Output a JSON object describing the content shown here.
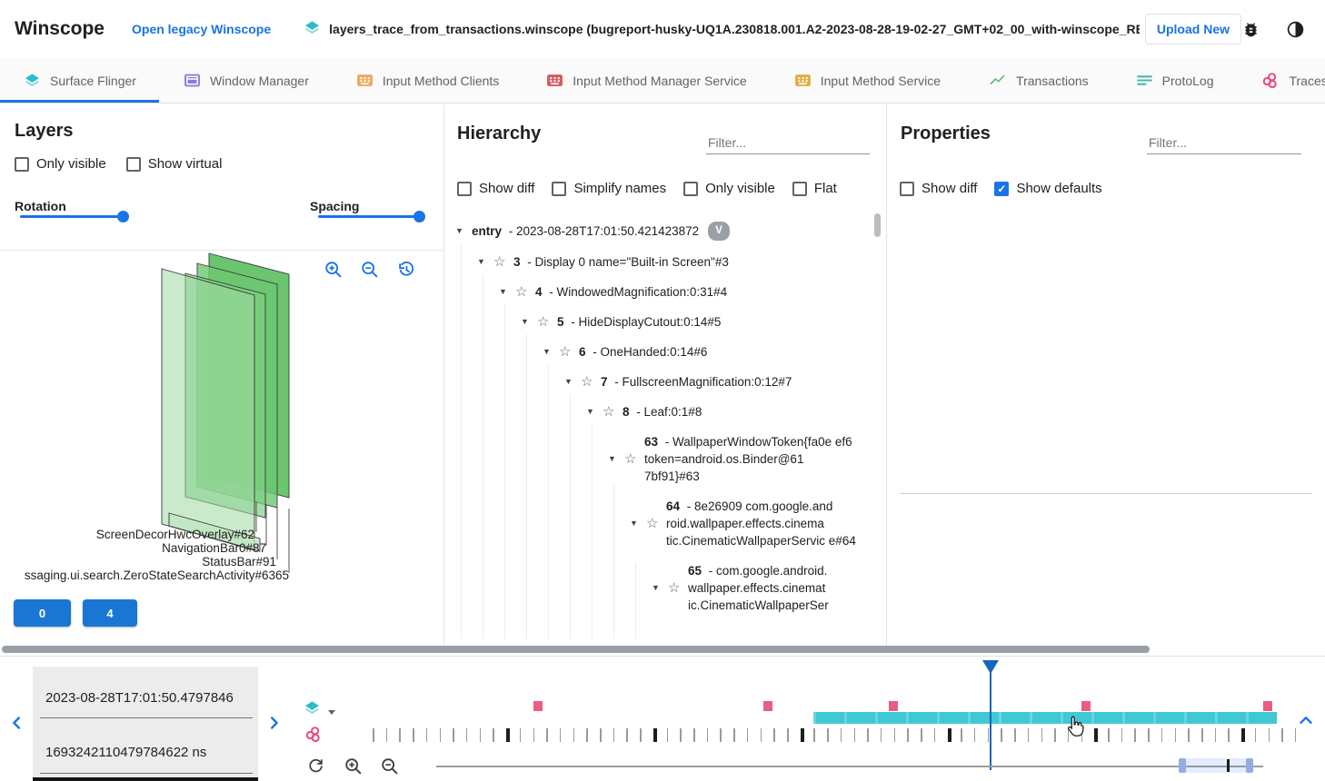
{
  "header": {
    "app_title": "Winscope",
    "legacy_link": "Open legacy Winscope",
    "file_name": "layers_trace_from_transactions.winscope (bugreport-husky-UQ1A.230818.001.A2-2023-08-28-19-02-27_GMT+02_00_with-winscope_REDACTED.zip)",
    "upload_button": "Upload New"
  },
  "tabs": [
    {
      "label": "Surface Flinger",
      "icon": "layers",
      "active": true
    },
    {
      "label": "Window Manager",
      "icon": "window",
      "active": false
    },
    {
      "label": "Input Method Clients",
      "icon": "kb-orange",
      "active": false
    },
    {
      "label": "Input Method Manager Service",
      "icon": "kb-red",
      "active": false
    },
    {
      "label": "Input Method Service",
      "icon": "kb-yellow",
      "active": false
    },
    {
      "label": "Transactions",
      "icon": "chart",
      "active": false
    },
    {
      "label": "ProtoLog",
      "icon": "list",
      "active": false
    },
    {
      "label": "Traces",
      "icon": "tags",
      "active": false
    }
  ],
  "layers_panel": {
    "title": "Layers",
    "checkboxes": [
      {
        "label": "Only visible",
        "checked": false
      },
      {
        "label": "Show virtual",
        "checked": false
      }
    ],
    "rotation_label": "Rotation",
    "spacing_label": "Spacing",
    "layer_labels": [
      "ScreenDecorHwcOverlay#62",
      "NavigationBar0#87",
      "StatusBar#91",
      "ssaging.ui.search.ZeroStateSearchActivity#6365"
    ],
    "display_buttons": [
      "0",
      "4"
    ]
  },
  "hierarchy_panel": {
    "title": "Hierarchy",
    "filter_placeholder": "Filter...",
    "checkboxes": [
      {
        "label": "Show diff",
        "checked": false
      },
      {
        "label": "Simplify names",
        "checked": false
      },
      {
        "label": "Only visible",
        "checked": false
      },
      {
        "label": "Flat",
        "checked": false
      }
    ],
    "tree": [
      {
        "level": 0,
        "id": "entry",
        "label": "- 2023-08-28T17:01:50.421423872",
        "chip": "V",
        "star": false
      },
      {
        "level": 1,
        "id": "3",
        "label": "- Display 0 name=\"Built-in Screen\"#3",
        "star": true
      },
      {
        "level": 2,
        "id": "4",
        "label": "- WindowedMagnification:0:31#4",
        "star": true
      },
      {
        "level": 3,
        "id": "5",
        "label": "- HideDisplayCutout:0:14#5",
        "star": true
      },
      {
        "level": 4,
        "id": "6",
        "label": "- OneHanded:0:14#6",
        "star": true
      },
      {
        "level": 5,
        "id": "7",
        "label": "- FullscreenMagnification:0:12#7",
        "star": true
      },
      {
        "level": 6,
        "id": "8",
        "label": "- Leaf:0:1#8",
        "star": true
      },
      {
        "level": 7,
        "id": "63",
        "label": "- WallpaperWindowToken{fa0e ef6 token=android.os.Binder@61 7bf91}#63",
        "star": true
      },
      {
        "level": 8,
        "id": "64",
        "label": "- 8e26909 com.google.and roid.wallpaper.effects.cinema tic.CinematicWallpaperServic e#64",
        "star": true
      },
      {
        "level": 9,
        "id": "65",
        "label": "- com.google.android. wallpaper.effects.cinemat ic.CinematicWallpaperSer",
        "star": true
      }
    ]
  },
  "properties_panel": {
    "title": "Properties",
    "filter_placeholder": "Filter...",
    "checkboxes": [
      {
        "label": "Show diff",
        "checked": false
      },
      {
        "label": "Show defaults",
        "checked": true
      }
    ]
  },
  "timeline": {
    "human_timestamp": "2023-08-28T17:01:50.4797846",
    "ns_timestamp": "1693242110479784622 ns",
    "transaction_marker_percents": [
      17.8,
      42.4,
      55.9,
      76.6,
      96.1
    ],
    "sf_block": {
      "start_percent": 47.3,
      "end_percent": 97.1
    },
    "playhead_percent": 66.3,
    "zoom_window": {
      "start_percent": 90.3,
      "end_percent": 98.2,
      "tick_percent": 95.6
    }
  },
  "colors": {
    "accent_blue": "#1a73e8",
    "playhead_blue": "#1565c0",
    "sf_teal": "#3ec9d4",
    "transaction_pink": "#ea5d83",
    "button_blue": "#1976d2"
  }
}
